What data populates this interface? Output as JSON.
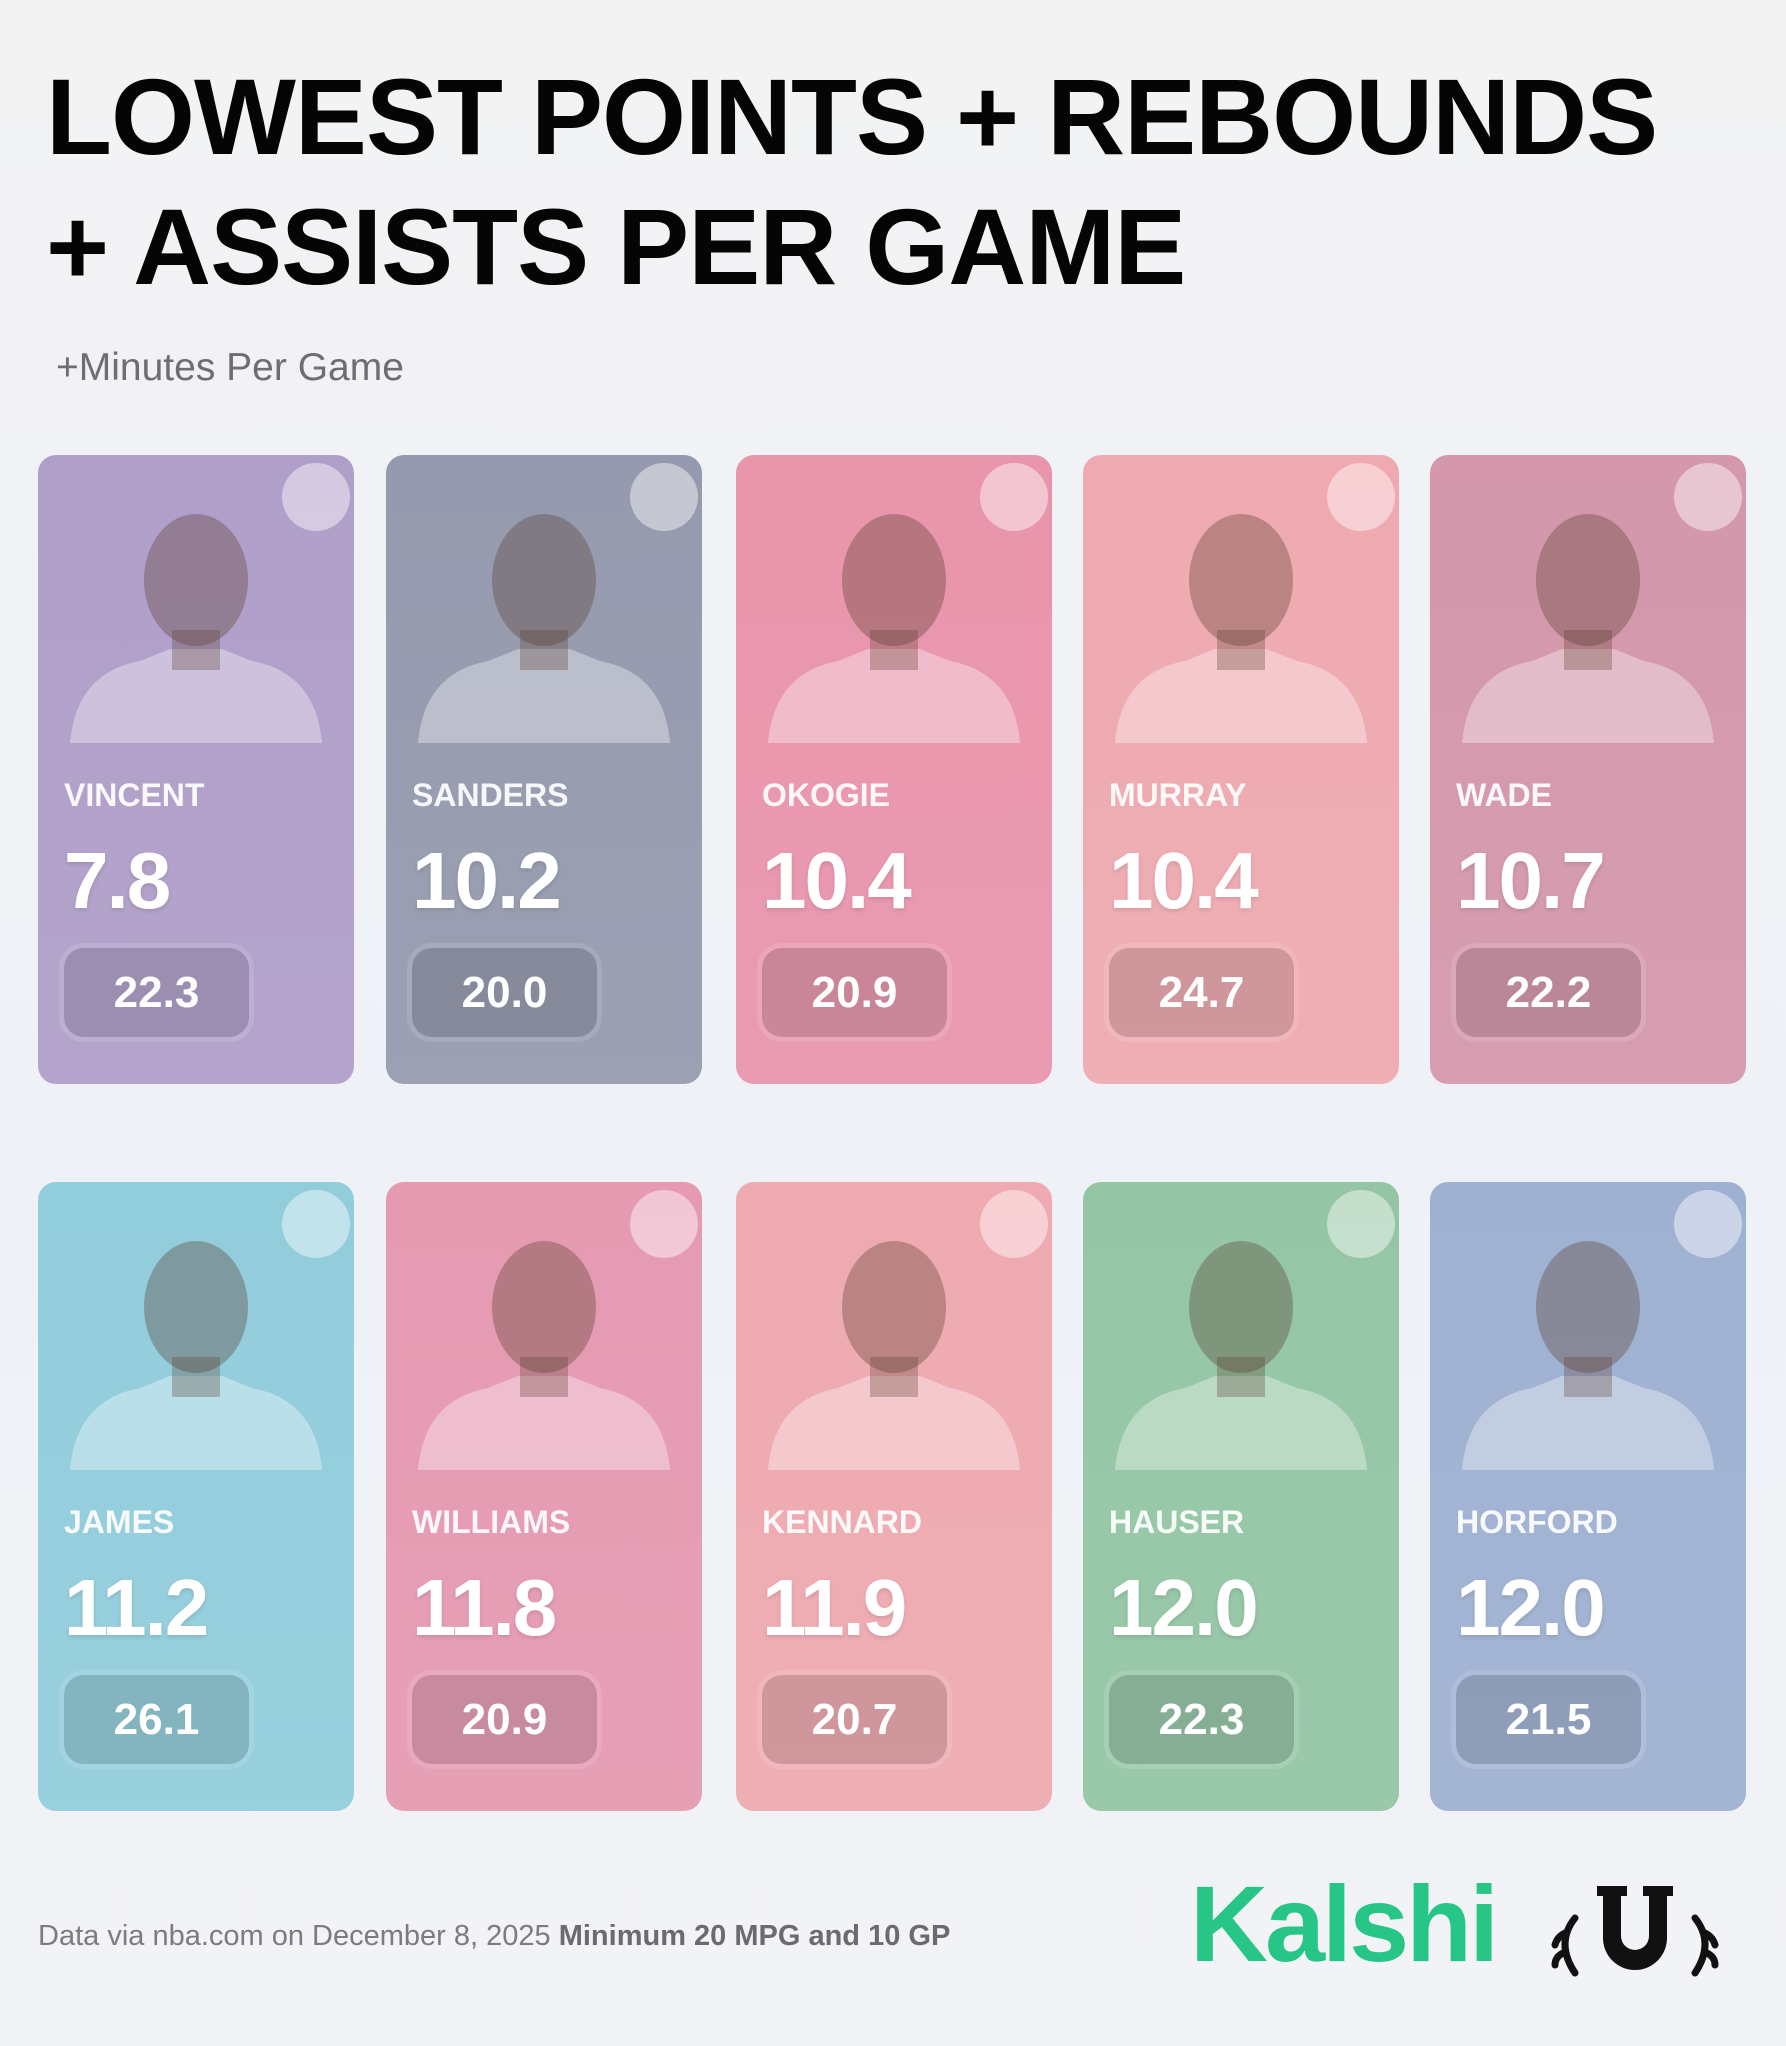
{
  "header": {
    "title_lines": [
      "LOWEST POINTS + REBOUNDS",
      "+ ASSISTS PER GAME"
    ],
    "subtitle": "+Minutes Per Game"
  },
  "cards": [
    {
      "name": "VINCENT",
      "value": "7.8",
      "minutes": "22.3",
      "color": "#b09fc9"
    },
    {
      "name": "SANDERS",
      "value": "10.2",
      "minutes": "20.0",
      "color": "#959aae"
    },
    {
      "name": "OKOGIE",
      "value": "10.4",
      "minutes": "20.9",
      "color": "#e995ac"
    },
    {
      "name": "MURRAY",
      "value": "10.4",
      "minutes": "24.7",
      "color": "#eeaab0"
    },
    {
      "name": "WADE",
      "value": "10.7",
      "minutes": "22.2",
      "color": "#d497ab"
    },
    {
      "name": "JAMES",
      "value": "11.2",
      "minutes": "26.1",
      "color": "#92cddc"
    },
    {
      "name": "WILLIAMS",
      "value": "11.8",
      "minutes": "20.9",
      "color": "#e59ab2"
    },
    {
      "name": "KENNARD",
      "value": "11.9",
      "minutes": "20.7",
      "color": "#eeaab0"
    },
    {
      "name": "HAUSER",
      "value": "12.0",
      "minutes": "22.3",
      "color": "#94c6a5"
    },
    {
      "name": "HORFORD",
      "value": "12.0",
      "minutes": "21.5",
      "color": "#9fb1d2"
    }
  ],
  "footer": {
    "source": "Data via nba.com on December 8, 2025",
    "note": "Minimum 20 MPG and 10 GP",
    "brand": "Kalshi"
  }
}
